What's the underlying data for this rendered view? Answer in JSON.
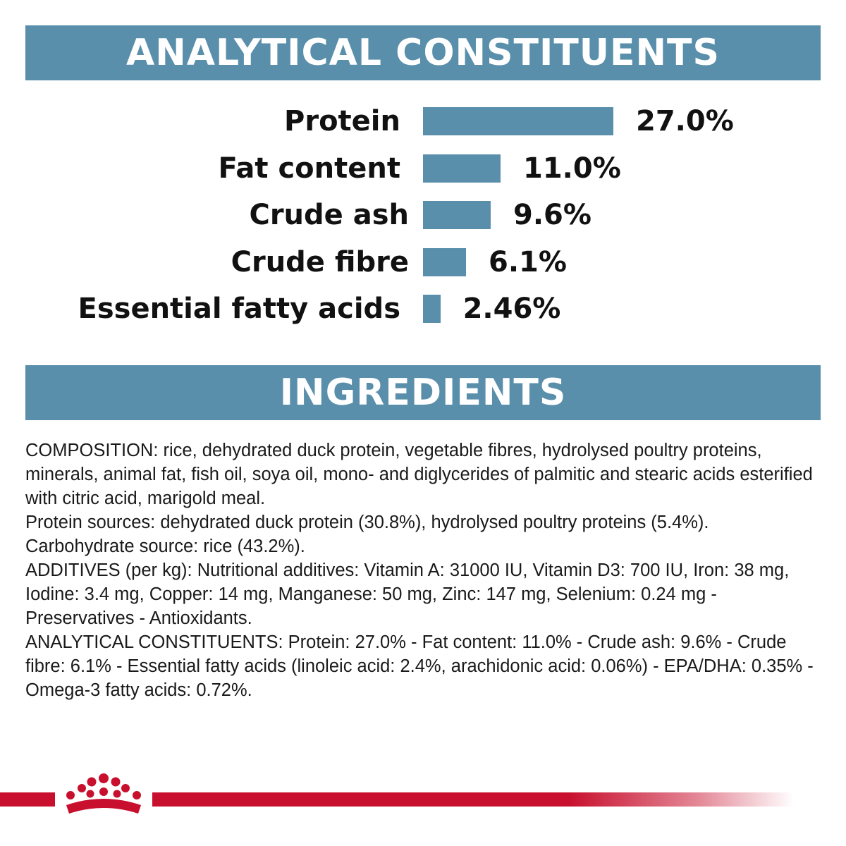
{
  "analytical_title": "ANALYTICAL CONSTITUENTS",
  "ingredients_title": "INGREDIENTS",
  "chart_data": {
    "type": "bar",
    "orientation": "horizontal",
    "categories": [
      "Protein",
      "Fat content",
      "Crude ash",
      "Crude fibre",
      "Essential fatty acids"
    ],
    "values": [
      27.0,
      11.0,
      9.6,
      6.1,
      2.46
    ],
    "value_labels": [
      "27.0%",
      "11.0%",
      "9.6%",
      "6.1%",
      "2.46%"
    ],
    "unit": "%",
    "xlim": [
      0,
      27.0
    ],
    "grid": false,
    "bar_color": "#5a8fac"
  },
  "ingredients": {
    "composition": "COMPOSITION: rice, dehydrated duck protein, vegetable fibres, hydrolysed poultry proteins, minerals, animal fat, fish oil, soya oil, mono- and diglycerides of palmitic and stearic acids esterified with citric acid, marigold meal.",
    "protein_sources": "Protein sources: dehydrated duck protein (30.8%), hydrolysed poultry proteins (5.4%).",
    "carbohydrate_source": "Carbohydrate source: rice (43.2%).",
    "additives": "ADDITIVES (per kg): Nutritional additives: Vitamin A: 31000 IU, Vitamin D3: 700 IU, Iron: 38 mg, Iodine: 3.4 mg, Copper: 14 mg, Manganese: 50 mg, Zinc: 147 mg, Selenium: 0.24 mg - Preservatives - Antioxidants.",
    "analytical": "ANALYTICAL CONSTITUENTS: Protein: 27.0% - Fat content: 11.0% - Crude ash: 9.6% - Crude fibre: 6.1% - Essential fatty acids (linoleic acid: 2.4%, arachidonic acid: 0.06%) - EPA/DHA: 0.35% - Omega-3 fatty acids: 0.72%."
  },
  "colors": {
    "banner": "#5a8fac",
    "brand_red": "#c8102e"
  },
  "logo_icon": "crown-icon"
}
